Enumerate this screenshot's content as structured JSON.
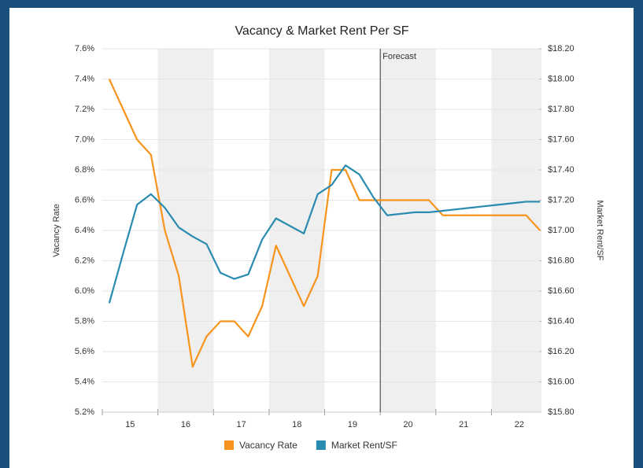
{
  "chart_data": {
    "type": "line",
    "title": "Vacancy & Market Rent Per SF",
    "ylabel": "Vacancy Rate",
    "y2label": "Market Rent/SF",
    "annotation": {
      "text": "Forecast",
      "x": 19.5
    },
    "shaded_years": [
      16,
      18,
      20,
      22
    ],
    "x": [
      14.625,
      14.875,
      15.125,
      15.375,
      15.625,
      15.875,
      16.125,
      16.375,
      16.625,
      16.875,
      17.125,
      17.375,
      17.625,
      17.875,
      18.125,
      18.375,
      18.625,
      18.875,
      19.125,
      19.375,
      19.625,
      19.875,
      20.125,
      20.375,
      20.625,
      20.875,
      21.125,
      21.375,
      21.625,
      21.875,
      22.125,
      22.375
    ],
    "xlim": [
      14.5,
      22.4
    ],
    "xticks": [
      15,
      16,
      17,
      18,
      19,
      20,
      21,
      22
    ],
    "ylim": [
      5.2,
      7.6
    ],
    "yticks": [
      {
        "value": 5.2,
        "label": "5.2%"
      },
      {
        "value": 5.4,
        "label": "5.4%"
      },
      {
        "value": 5.6,
        "label": "5.6%"
      },
      {
        "value": 5.8,
        "label": "5.8%"
      },
      {
        "value": 6.0,
        "label": "6.0%"
      },
      {
        "value": 6.2,
        "label": "6.2%"
      },
      {
        "value": 6.4,
        "label": "6.4%"
      },
      {
        "value": 6.6,
        "label": "6.6%"
      },
      {
        "value": 6.8,
        "label": "6.8%"
      },
      {
        "value": 7.0,
        "label": "7.0%"
      },
      {
        "value": 7.2,
        "label": "7.2%"
      },
      {
        "value": 7.4,
        "label": "7.4%"
      },
      {
        "value": 7.6,
        "label": "7.6%"
      }
    ],
    "y2lim": [
      15.8,
      18.2
    ],
    "y2ticks": [
      {
        "value": 15.8,
        "label": "$15.80"
      },
      {
        "value": 16.0,
        "label": "$16.00"
      },
      {
        "value": 16.2,
        "label": "$16.20"
      },
      {
        "value": 16.4,
        "label": "$16.40"
      },
      {
        "value": 16.6,
        "label": "$16.60"
      },
      {
        "value": 16.8,
        "label": "$16.80"
      },
      {
        "value": 17.0,
        "label": "$17.00"
      },
      {
        "value": 17.2,
        "label": "$17.20"
      },
      {
        "value": 17.4,
        "label": "$17.40"
      },
      {
        "value": 17.6,
        "label": "$17.60"
      },
      {
        "value": 17.8,
        "label": "$17.80"
      },
      {
        "value": 18.0,
        "label": "$18.00"
      },
      {
        "value": 18.2,
        "label": "$18.20"
      }
    ],
    "grid": true,
    "series": [
      {
        "name": "Vacancy Rate",
        "color": "#f7941d",
        "values": [
          7.4,
          7.2,
          7.0,
          6.9,
          6.4,
          6.1,
          5.5,
          5.7,
          5.8,
          5.8,
          5.7,
          5.9,
          6.3,
          6.1,
          5.9,
          6.1,
          6.8,
          6.8,
          6.6,
          6.6,
          6.6,
          6.6,
          6.6,
          6.6,
          6.5,
          6.5,
          6.5,
          6.5,
          6.5,
          6.5,
          6.5,
          6.4
        ]
      },
      {
        "name": "Market Rent/SF",
        "color": "#2a8bb0",
        "axis": "y2",
        "values": [
          16.52,
          16.85,
          17.17,
          17.24,
          17.15,
          17.02,
          16.96,
          16.91,
          16.72,
          16.68,
          16.71,
          16.94,
          17.08,
          17.03,
          16.98,
          17.24,
          17.3,
          17.43,
          17.37,
          17.22,
          17.1,
          17.11,
          17.12,
          17.12,
          17.13,
          17.14,
          17.15,
          17.16,
          17.17,
          17.18,
          17.19,
          17.19
        ]
      }
    ]
  }
}
